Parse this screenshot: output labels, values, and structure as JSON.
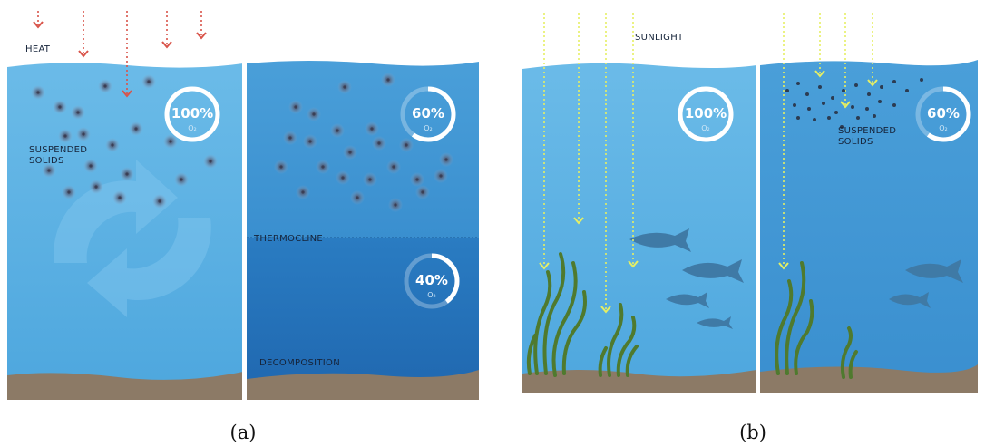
{
  "panel_a": {
    "caption": "(a)",
    "heat_label": "HEAT",
    "suspended_label_line1": "SUSPENDED",
    "suspended_label_line2": "SOLIDS",
    "thermocline_label": "THERMOCLINE",
    "decomposition_label": "DECOMPOSITION",
    "gauges": [
      {
        "value_text": "100%",
        "fraction": 1.0,
        "sub": "O₂"
      },
      {
        "value_text": "60%",
        "fraction": 0.6,
        "sub": "O₂"
      },
      {
        "value_text": "40%",
        "fraction": 0.4,
        "sub": "O₂"
      }
    ]
  },
  "panel_b": {
    "caption": "(b)",
    "sunlight_label": "SUNLIGHT",
    "suspended_label_line1": "SUSPENDED",
    "suspended_label_line2": "SOLIDS",
    "gauges": [
      {
        "value_text": "100%",
        "fraction": 1.0,
        "sub": "O₂"
      },
      {
        "value_text": "60%",
        "fraction": 0.6,
        "sub": "O₂"
      }
    ]
  },
  "colors": {
    "water_light": "#56aee0",
    "water_mid": "#3f93d1",
    "water_deep": "#2574bb",
    "sediment": "#8c7a66",
    "heat_arrow": "#d9544a",
    "sun_arrow": "#e6ef63",
    "plant": "#4f7a2e",
    "fish": "#3f7aa6"
  }
}
